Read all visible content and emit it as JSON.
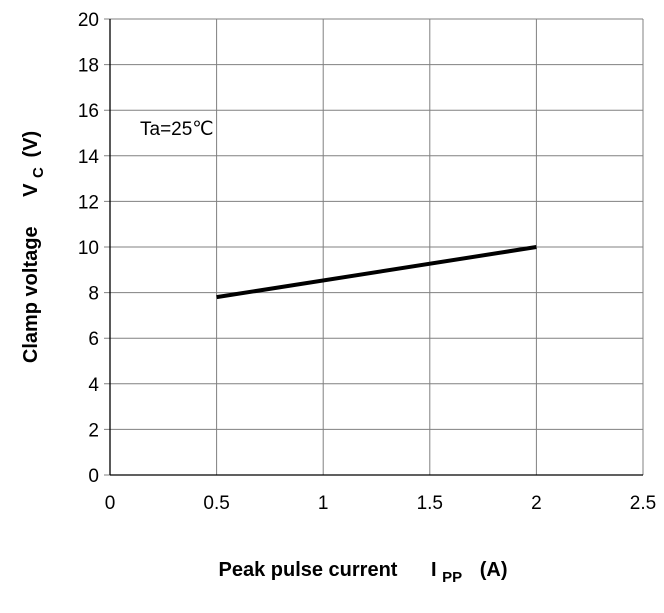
{
  "chart_data": {
    "type": "line",
    "series": [
      {
        "x": [
          0.5,
          2
        ],
        "y": [
          7.8,
          10
        ]
      }
    ],
    "xlim": [
      0,
      2.5
    ],
    "ylim": [
      0,
      20
    ],
    "x_ticks": [
      "0",
      "0.5",
      "1",
      "1.5",
      "2",
      "2.5"
    ],
    "y_ticks": [
      "0",
      "2",
      "4",
      "6",
      "8",
      "10",
      "12",
      "14",
      "16",
      "18",
      "20"
    ],
    "xlabel": {
      "text": "Peak pulse current",
      "symbol": "I",
      "symbol_sub": "PP",
      "unit": "(A)"
    },
    "ylabel": {
      "text": "Clamp voltage",
      "symbol": "V",
      "symbol_sub": "C",
      "unit": "(V)"
    },
    "annotation": "Ta=25℃",
    "grid": true,
    "legend": "none",
    "line_color": "#000000",
    "grid_color": "#808080"
  }
}
